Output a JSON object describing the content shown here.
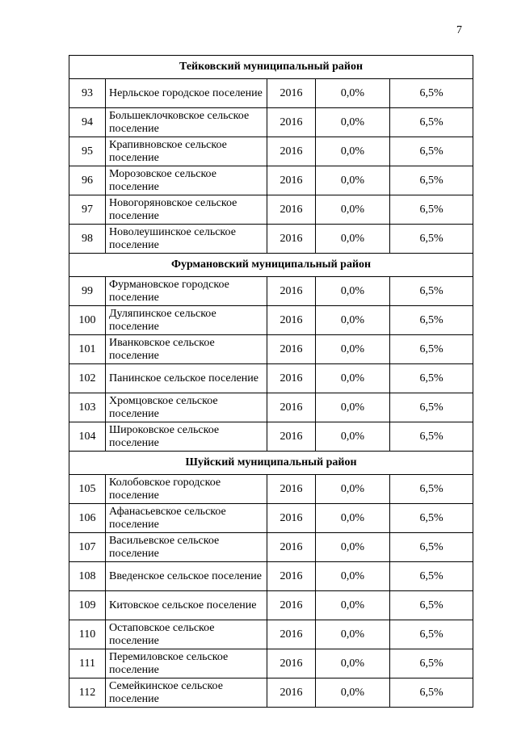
{
  "page": {
    "number": "7"
  },
  "table": {
    "sections": [
      {
        "title": "Тейковский муниципальный район",
        "rows": [
          {
            "num": "93",
            "name": "Нерльское городское поселение",
            "year": "2016",
            "p1": "0,0%",
            "p2": "6,5%"
          },
          {
            "num": "94",
            "name": "Большеклочковское сельское поселение",
            "year": "2016",
            "p1": "0,0%",
            "p2": "6,5%"
          },
          {
            "num": "95",
            "name": "Крапивновское сельское поселение",
            "year": "2016",
            "p1": "0,0%",
            "p2": "6,5%"
          },
          {
            "num": "96",
            "name": "Морозовское сельское поселение",
            "year": "2016",
            "p1": "0,0%",
            "p2": "6,5%"
          },
          {
            "num": "97",
            "name": "Новогоряновское сельское поселение",
            "year": "2016",
            "p1": "0,0%",
            "p2": "6,5%"
          },
          {
            "num": "98",
            "name": "Новолеушинское сельское поселение",
            "year": "2016",
            "p1": "0,0%",
            "p2": "6,5%"
          }
        ]
      },
      {
        "title": "Фурмановский муниципальный район",
        "rows": [
          {
            "num": "99",
            "name": "Фурмановское городское поселение",
            "year": "2016",
            "p1": "0,0%",
            "p2": "6,5%"
          },
          {
            "num": "100",
            "name": "Дуляпинское сельское поселение",
            "year": "2016",
            "p1": "0,0%",
            "p2": "6,5%"
          },
          {
            "num": "101",
            "name": "Иванковское сельское поселение",
            "year": "2016",
            "p1": "0,0%",
            "p2": "6,5%"
          },
          {
            "num": "102",
            "name": "Панинское сельское поселение",
            "year": "2016",
            "p1": "0,0%",
            "p2": "6,5%"
          },
          {
            "num": "103",
            "name": "Хромцовское сельское поселение",
            "year": "2016",
            "p1": "0,0%",
            "p2": "6,5%"
          },
          {
            "num": "104",
            "name": "Широковское сельское поселение",
            "year": "2016",
            "p1": "0,0%",
            "p2": "6,5%"
          }
        ]
      },
      {
        "title": "Шуйский муниципальный район",
        "rows": [
          {
            "num": "105",
            "name": "Колобовское городское поселение",
            "year": "2016",
            "p1": "0,0%",
            "p2": "6,5%"
          },
          {
            "num": "106",
            "name": "Афанасьевское сельское поселение",
            "year": "2016",
            "p1": "0,0%",
            "p2": "6,5%"
          },
          {
            "num": "107",
            "name": "Васильевское сельское поселение",
            "year": "2016",
            "p1": "0,0%",
            "p2": "6,5%"
          },
          {
            "num": "108",
            "name": "Введенское сельское поселение",
            "year": "2016",
            "p1": "0,0%",
            "p2": "6,5%"
          },
          {
            "num": "109",
            "name": "Китовское сельское поселение",
            "year": "2016",
            "p1": "0,0%",
            "p2": "6,5%"
          },
          {
            "num": "110",
            "name": "Остаповское сельское поселение",
            "year": "2016",
            "p1": "0,0%",
            "p2": "6,5%"
          },
          {
            "num": "111",
            "name": "Перемиловское сельское поселение",
            "year": "2016",
            "p1": "0,0%",
            "p2": "6,5%"
          },
          {
            "num": "112",
            "name": "Семейкинское сельское поселение",
            "year": "2016",
            "p1": "0,0%",
            "p2": "6,5%"
          }
        ]
      }
    ]
  }
}
